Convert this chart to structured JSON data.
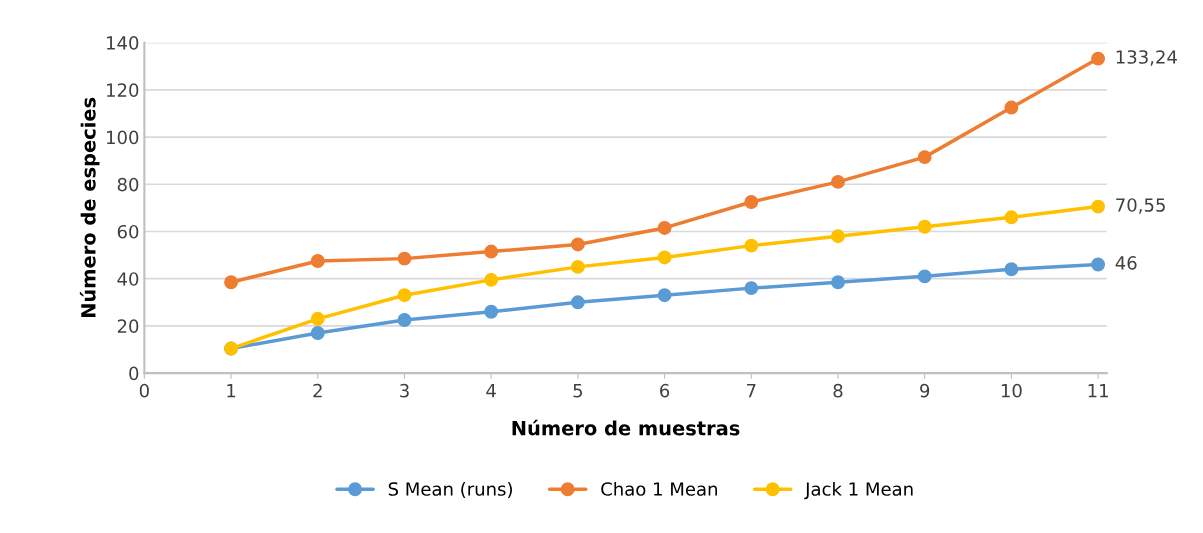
{
  "chart_data": {
    "type": "line",
    "xlabel": "Número de muestras",
    "ylabel": "Número de especies",
    "x": [
      1,
      2,
      3,
      4,
      5,
      6,
      7,
      8,
      9,
      10,
      11
    ],
    "series": [
      {
        "name": "S Mean (runs)",
        "color": "#5b9bd5",
        "values": [
          10.4,
          17,
          22.5,
          26,
          30,
          33,
          36,
          38.5,
          41,
          44,
          46
        ],
        "value_labels": [
          null,
          null,
          null,
          null,
          null,
          null,
          null,
          null,
          null,
          null,
          "46"
        ]
      },
      {
        "name": "Chao 1 Mean",
        "color": "#ed7d31",
        "values": [
          38.5,
          47.5,
          48.5,
          51.5,
          54.5,
          61.5,
          72.5,
          81,
          91.5,
          112.5,
          133.24
        ],
        "value_labels": [
          null,
          null,
          null,
          null,
          null,
          null,
          null,
          null,
          null,
          null,
          "133,24"
        ]
      },
      {
        "name": "Jack 1 Mean",
        "color": "#ffc000",
        "values": [
          10.4,
          23,
          33,
          39.5,
          45,
          49,
          54,
          58,
          62,
          66,
          70.55
        ],
        "value_labels": [
          null,
          null,
          null,
          null,
          null,
          null,
          null,
          null,
          null,
          null,
          "70,55"
        ]
      }
    ],
    "xlim": [
      0,
      11.1
    ],
    "xticks": [
      0,
      1,
      2,
      3,
      4,
      5,
      6,
      7,
      8,
      9,
      10,
      11
    ],
    "ylim": [
      0,
      140
    ],
    "yticks": [
      0,
      20,
      40,
      60,
      80,
      100,
      120,
      140
    ],
    "grid": "y",
    "legend": "bottom",
    "marker": "circle",
    "line_style": "solid"
  }
}
